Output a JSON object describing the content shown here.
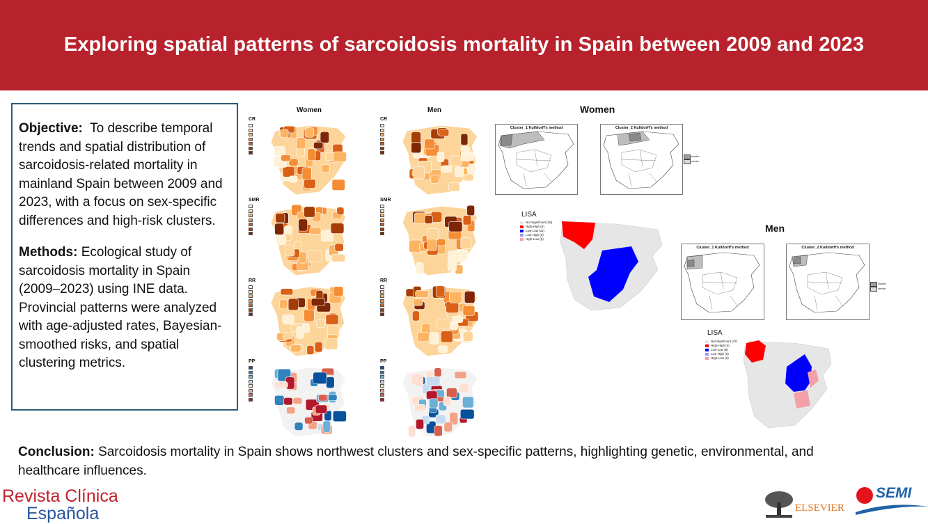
{
  "title": "Exploring spatial patterns of sarcoidosis mortality in Spain between 2009 and 2023",
  "objective": {
    "label": "Objective:",
    "text": "To describe temporal trends and spatial distribution of sarcoidosis-related mortality in mainland Spain between 2009 and 2023, with a focus on sex-specific differences and high-risk clusters."
  },
  "methods": {
    "label": "Methods:",
    "text": "Ecological study of sarcoidosis mortality in Spain (2009–2023) using INE data. Provincial patterns were analyzed with age-adjusted rates, Bayesian-smoothed risks, and spatial clustering metrics."
  },
  "conclusion": {
    "label": "Conclusion:",
    "text": "Sarcoidosis mortality in Spain shows northwest clusters and sex-specific patterns, highlighting genetic, environmental, and healthcare influences."
  },
  "maps_grid": {
    "col_women": "Women",
    "col_men": "Men",
    "rows": [
      "CR",
      "SMR",
      "RR",
      "PP"
    ]
  },
  "clusters": {
    "women_title": "Women",
    "men_title": "Men",
    "cluster1": "Cluster_1 Kulldorff's method",
    "cluster2": "Cluster_2 Kulldorff's method",
    "legend_cluster": "cluster",
    "legend_centre": "centre"
  },
  "lisa": {
    "title": "LISA",
    "women_legend": [
      "Not Significant (26)",
      "High-High (5)",
      "Low-Low (11)",
      "Low-High (0)",
      "High-Low (0)"
    ],
    "men_legend": [
      "Not Significant (37)",
      "High-High (4)",
      "Low-Low (8)",
      "Low-High (0)",
      "High-Low (2)"
    ],
    "colors": {
      "ns": "#e6e6e6",
      "hh": "#ff0000",
      "ll": "#0000ff",
      "lh": "#9999ff",
      "hl": "#f4a0a8"
    }
  },
  "brand": {
    "journal_line1": "Revista Clínica",
    "journal_line2": "Española",
    "publisher": "ELSEVIER",
    "society": "SEMI"
  },
  "colors": {
    "header": "#b8222d",
    "box_border": "#2e5a78",
    "journal_red": "#c0202d",
    "journal_blue": "#2556a0"
  }
}
